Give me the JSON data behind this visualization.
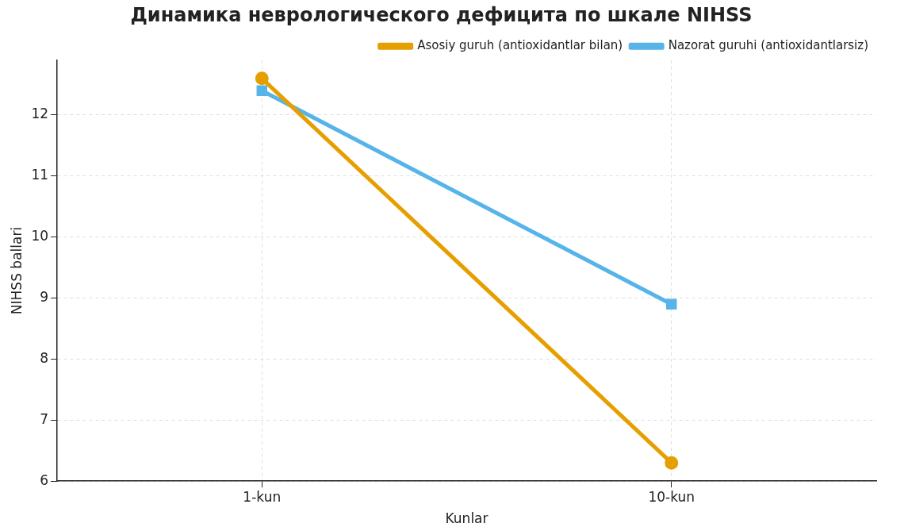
{
  "chart_data": {
    "type": "line",
    "title": "Динамика неврологического дефицита по шкале NIHSS",
    "xlabel": "Kunlar",
    "ylabel": "NIHSS ballari",
    "categories": [
      "1-kun",
      "10-kun"
    ],
    "series": [
      {
        "name": "Asosiy guruh (antioxidantlar bilan)",
        "color": "#e69f00",
        "values": [
          12.6,
          6.3
        ],
        "marker": "circle"
      },
      {
        "name": "Nazorat guruhi (antioxidantlarsiz)",
        "color": "#56b4e9",
        "values": [
          12.4,
          8.9
        ],
        "marker": "square"
      }
    ],
    "ylim": [
      6,
      12.9
    ],
    "yticks": [
      6,
      7,
      8,
      9,
      10,
      11,
      12
    ],
    "grid": true,
    "legend": "top right",
    "line_style": "solid"
  }
}
